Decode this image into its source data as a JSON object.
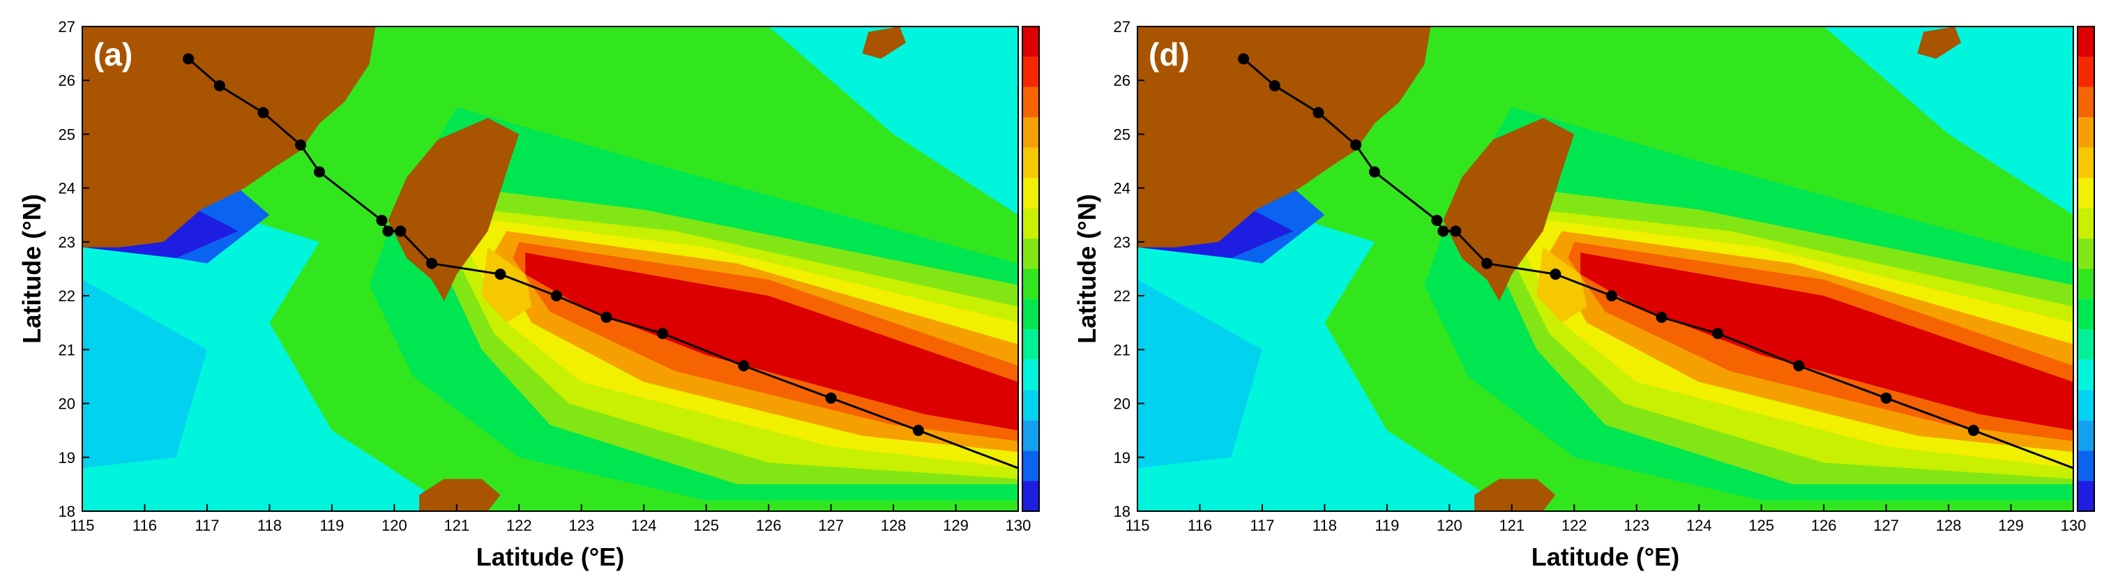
{
  "colors": {
    "land": "#a85400",
    "track": "#000000",
    "colorbar": [
      "#1e1ee0",
      "#0a64f0",
      "#14a0f0",
      "#00d2f0",
      "#00f5dc",
      "#00f098",
      "#00e650",
      "#32e61e",
      "#82e614",
      "#c8f000",
      "#f0f000",
      "#f5c800",
      "#f5a000",
      "#f56400",
      "#f52800",
      "#dc0000"
    ]
  },
  "panels": [
    {
      "tag": "(a)",
      "xlabel": "Latitude (°E)",
      "ylabel": "Latitude (°N)",
      "xticks": [
        "115",
        "116",
        "117",
        "118",
        "119",
        "120",
        "121",
        "122",
        "123",
        "124",
        "125",
        "126",
        "127",
        "128",
        "129",
        "130"
      ],
      "yticks": [
        "18",
        "19",
        "20",
        "21",
        "22",
        "23",
        "24",
        "25",
        "26",
        "27"
      ]
    },
    {
      "tag": "(d)",
      "xlabel": "Latitude (°E)",
      "ylabel": "Latitude (°N)",
      "xticks": [
        "115",
        "116",
        "117",
        "118",
        "119",
        "120",
        "121",
        "122",
        "123",
        "124",
        "125",
        "126",
        "127",
        "128",
        "129",
        "130"
      ],
      "yticks": [
        "18",
        "19",
        "20",
        "21",
        "22",
        "23",
        "24",
        "25",
        "26",
        "27"
      ]
    }
  ],
  "typhoon_track": {
    "lon": [
      116.7,
      117.2,
      117.9,
      118.5,
      118.8,
      119.8,
      119.9,
      120.1,
      120.6,
      121.7,
      122.6,
      123.4,
      124.3,
      125.6,
      127.0,
      128.4,
      130.0
    ],
    "lat": [
      26.4,
      25.9,
      25.4,
      24.8,
      24.3,
      23.4,
      23.2,
      23.2,
      22.6,
      22.4,
      22.0,
      21.6,
      21.3,
      20.7,
      20.1,
      19.5,
      18.8
    ]
  },
  "axes": {
    "xlim": [
      115,
      130
    ],
    "ylim": [
      18,
      27
    ]
  }
}
